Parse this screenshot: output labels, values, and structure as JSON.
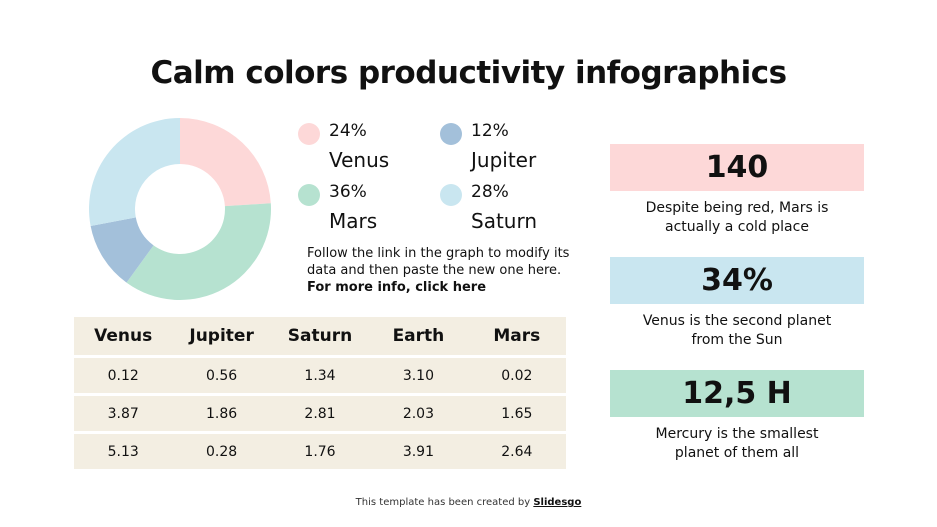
{
  "title": "Calm colors productivity infographics",
  "colors": {
    "venus": "#FDD8D8",
    "mars": "#B6E2D0",
    "jupiter": "#A3C0DA",
    "saturn": "#C9E6F0",
    "table_bg": "#F3EEE2"
  },
  "legend": [
    {
      "pct": "24%",
      "name": "Venus",
      "color": "#FDD8D8"
    },
    {
      "pct": "12%",
      "name": "Jupiter",
      "color": "#A3C0DA"
    },
    {
      "pct": "36%",
      "name": "Mars",
      "color": "#B6E2D0"
    },
    {
      "pct": "28%",
      "name": "Saturn",
      "color": "#C9E6F0"
    }
  ],
  "note": {
    "text": "Follow the link in the graph to modify its data and then paste the new one here. ",
    "link": "For more info, click here"
  },
  "table": {
    "headers": [
      "Venus",
      "Jupiter",
      "Saturn",
      "Earth",
      "Mars"
    ],
    "rows": [
      [
        "0.12",
        "0.56",
        "1.34",
        "3.10",
        "0.02"
      ],
      [
        "3.87",
        "1.86",
        "2.81",
        "2.03",
        "1.65"
      ],
      [
        "5.13",
        "0.28",
        "1.76",
        "3.91",
        "2.64"
      ]
    ]
  },
  "stats": [
    {
      "value": "140",
      "desc_line1": "Despite being red, Mars is",
      "desc_line2": "actually a cold place",
      "color": "#FDD8D8"
    },
    {
      "value": "34%",
      "desc_line1": "Venus is the second planet",
      "desc_line2": "from the Sun",
      "color": "#C9E6F0"
    },
    {
      "value": "12,5 H",
      "desc_line1": "Mercury is the smallest",
      "desc_line2": "planet of them all",
      "color": "#B6E2D0"
    }
  ],
  "footer": {
    "text": "This template has been created by ",
    "link": "Slidesgo"
  },
  "chart_data": [
    {
      "type": "pie",
      "subtype": "donut",
      "title": "",
      "categories": [
        "Venus",
        "Mars",
        "Jupiter",
        "Saturn"
      ],
      "values": [
        24,
        36,
        12,
        28
      ],
      "unit": "%",
      "colors": [
        "#FDD8D8",
        "#B6E2D0",
        "#A3C0DA",
        "#C9E6F0"
      ],
      "start_angle": "12 o'clock, clockwise",
      "legend_position": "right"
    },
    {
      "type": "table",
      "columns": [
        "Venus",
        "Jupiter",
        "Saturn",
        "Earth",
        "Mars"
      ],
      "rows": [
        [
          0.12,
          0.56,
          1.34,
          3.1,
          0.02
        ],
        [
          3.87,
          1.86,
          2.81,
          2.03,
          1.65
        ],
        [
          5.13,
          0.28,
          1.76,
          3.91,
          2.64
        ]
      ]
    }
  ]
}
